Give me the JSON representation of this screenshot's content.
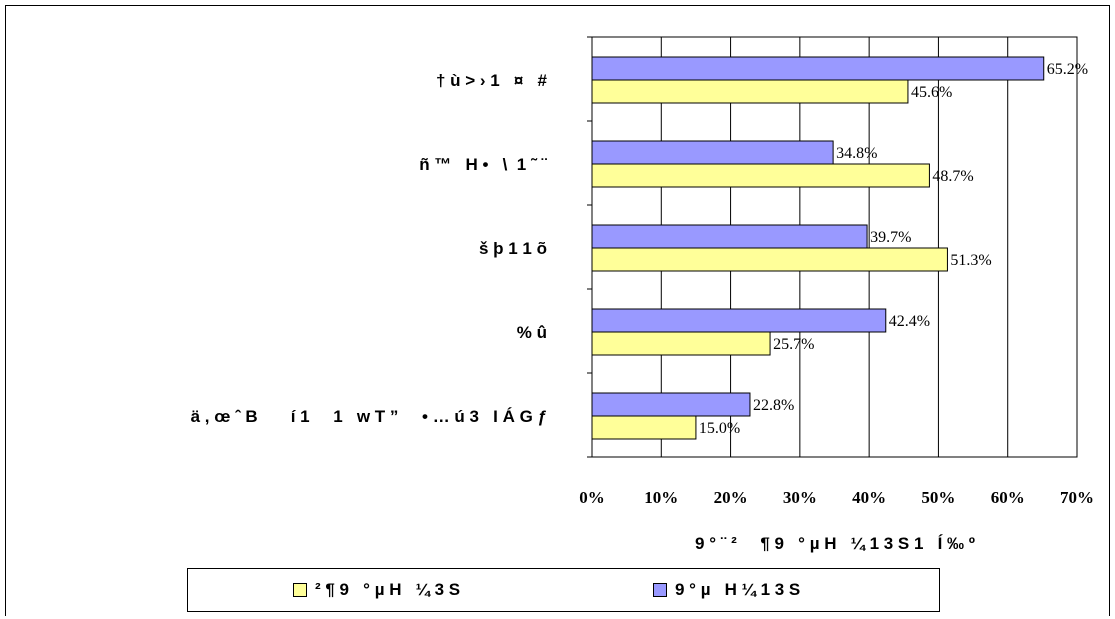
{
  "chart_data": {
    "type": "bar",
    "orientation": "horizontal",
    "categories": [
      "† ù > › 1   ¤   #",
      "ñ ™   H •   \\  1 ˜ ¨",
      "š þ 1 1 õ",
      "% û",
      "ä , œ ˆ B       í 1     1   w T ”     • … ú 3   I Á G ƒ"
    ],
    "series": [
      {
        "name": "9 ° µ   H ¼ 1 3 S",
        "color": "#9999ff",
        "values": [
          65.2,
          34.8,
          39.7,
          42.4,
          22.8
        ]
      },
      {
        "name": "² ¶ 9   ° µ H   ¼ 3 S",
        "color": "#ffff99",
        "values": [
          45.6,
          48.7,
          51.3,
          25.7,
          15.0
        ]
      }
    ],
    "value_labels": {
      "s0": [
        "65.2%",
        "34.8%",
        "39.7%",
        "42.4%",
        "22.8%"
      ],
      "s1": [
        "45.6%",
        "48.7%",
        "51.3%",
        "25.7%",
        "15.0%"
      ]
    },
    "xticks": [
      "0%",
      "10%",
      "20%",
      "30%",
      "40%",
      "50%",
      "60%",
      "70%"
    ],
    "xlim": [
      0,
      70
    ],
    "xlabel": "9 ° ¨ ²     ¶ 9   ° µ H   ¼ 1 3 S 1   Í ‰ º",
    "grid": true,
    "legend_position": "bottom"
  },
  "legend": {
    "items": [
      {
        "label": "² ¶ 9   ° µ H   ¼ 3 S",
        "color": "#ffff99"
      },
      {
        "label": "9 ° µ   H ¼ 1 3 S",
        "color": "#9999ff"
      }
    ]
  }
}
